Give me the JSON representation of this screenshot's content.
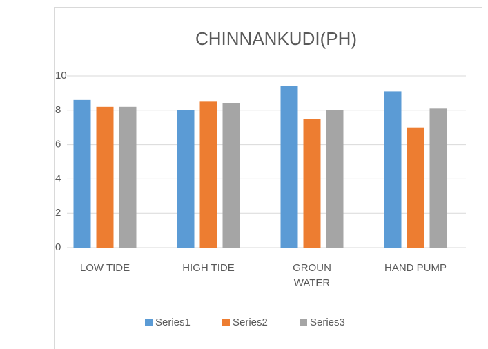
{
  "chart_data": {
    "type": "bar",
    "title": "CHINNANKUDI(PH)",
    "categories": [
      "LOW TIDE",
      "HIGH TIDE",
      "GROUN WATER",
      "HAND PUMP"
    ],
    "series": [
      {
        "name": "Series1",
        "color": "#5b9bd5",
        "values": [
          8.6,
          8.0,
          9.4,
          9.1
        ]
      },
      {
        "name": "Series2",
        "color": "#ed7d31",
        "values": [
          8.2,
          8.5,
          7.5,
          7.0
        ]
      },
      {
        "name": "Series3",
        "color": "#a5a5a5",
        "values": [
          8.2,
          8.4,
          8.0,
          8.1
        ]
      }
    ],
    "ylim": [
      0,
      10
    ],
    "yticks": [
      0,
      2,
      4,
      6,
      8,
      10
    ],
    "grid": true
  }
}
